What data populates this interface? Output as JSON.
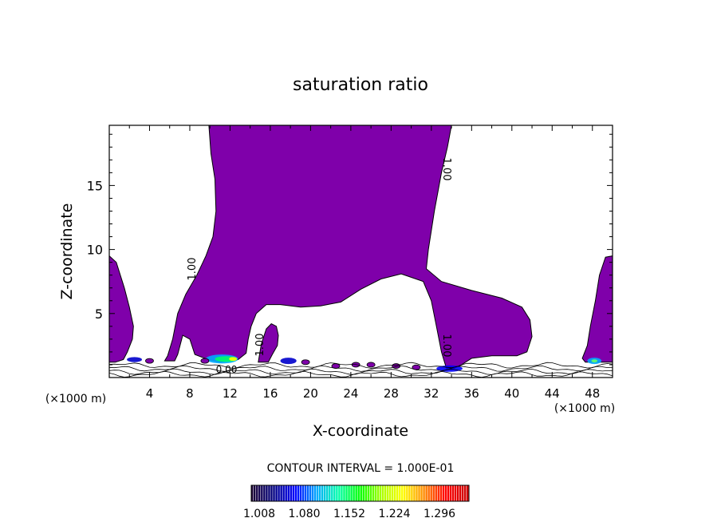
{
  "chart_data": {
    "type": "contour",
    "title": "saturation ratio",
    "xlabel": "X-coordinate",
    "ylabel": "Z-coordinate",
    "x_unit_left": "(×1000 m)",
    "x_unit_right": "(×1000 m)",
    "xlim": [
      0,
      50
    ],
    "ylim": [
      0,
      19.7
    ],
    "x_ticks": [
      4,
      8,
      12,
      16,
      20,
      24,
      28,
      32,
      36,
      40,
      44,
      48
    ],
    "y_ticks": [
      5,
      10,
      15
    ],
    "contour_labels": [
      "1.00",
      "1.00",
      "1.00",
      "1.00",
      "0.00"
    ],
    "contour_interval_text": "CONTOUR INTERVAL = 1.000E-01",
    "colorbar": {
      "ticks": [
        "1.008",
        "1.080",
        "1.152",
        "1.224",
        "1.296"
      ],
      "colors": [
        "#1a0033",
        "#000080",
        "#0000ff",
        "#00aaff",
        "#00ffaa",
        "#00ff00",
        "#aaff00",
        "#ffff00",
        "#ff8800",
        "#ff0000",
        "#cc0000"
      ]
    },
    "fill_color": "#7f00aa",
    "regions": [
      {
        "name": "upper-plume",
        "points": [
          [
            9.9,
            19.7
          ],
          [
            34,
            19.7
          ],
          [
            33.6,
            18
          ],
          [
            33,
            16
          ],
          [
            32.3,
            13
          ],
          [
            31.7,
            10
          ],
          [
            31.5,
            8.5
          ],
          [
            33,
            7.5
          ],
          [
            36,
            6.8
          ],
          [
            39,
            6.2
          ],
          [
            41,
            5.5
          ],
          [
            41.8,
            4.5
          ],
          [
            42,
            3.2
          ],
          [
            41.5,
            2
          ],
          [
            40.5,
            1.7
          ],
          [
            38,
            1.7
          ],
          [
            36,
            1.5
          ],
          [
            35,
            1
          ],
          [
            34,
            0.6
          ],
          [
            33.5,
            0.7
          ],
          [
            33,
            2
          ],
          [
            32.5,
            4
          ],
          [
            32,
            6
          ],
          [
            31.2,
            7.5
          ],
          [
            29,
            8.1
          ],
          [
            27,
            7.7
          ],
          [
            25,
            6.9
          ],
          [
            23,
            5.9
          ],
          [
            21,
            5.6
          ],
          [
            19,
            5.5
          ],
          [
            17,
            5.7
          ],
          [
            15.6,
            5.7
          ],
          [
            14.6,
            5
          ],
          [
            14.1,
            4
          ],
          [
            13.8,
            3
          ],
          [
            13.6,
            1.9
          ],
          [
            12.8,
            1.4
          ],
          [
            11,
            1.2
          ],
          [
            9.8,
            1.4
          ],
          [
            8.5,
            1.8
          ],
          [
            8,
            3
          ],
          [
            7.3,
            3.3
          ],
          [
            6.8,
            1.8
          ],
          [
            6.5,
            1.3
          ],
          [
            5.5,
            1.3
          ],
          [
            5.8,
            1.7
          ],
          [
            6.3,
            3
          ],
          [
            6.8,
            5
          ],
          [
            7.6,
            6.5
          ],
          [
            8.7,
            8
          ],
          [
            9.6,
            9.5
          ],
          [
            10.3,
            11
          ],
          [
            10.6,
            13
          ],
          [
            10.5,
            15.5
          ],
          [
            10.1,
            17.5
          ],
          [
            9.9,
            19.7
          ]
        ]
      },
      {
        "name": "left-edge",
        "points": [
          [
            0,
            9.5
          ],
          [
            0.7,
            9
          ],
          [
            1.5,
            7
          ],
          [
            2,
            5.5
          ],
          [
            2.4,
            4
          ],
          [
            2.3,
            3
          ],
          [
            1.8,
            2
          ],
          [
            1.4,
            1.4
          ],
          [
            0.6,
            1.2
          ],
          [
            0,
            1.2
          ]
        ]
      },
      {
        "name": "right-edge",
        "points": [
          [
            50,
            9.5
          ],
          [
            49.3,
            9.4
          ],
          [
            48.7,
            8
          ],
          [
            48.3,
            6
          ],
          [
            47.8,
            4
          ],
          [
            47.5,
            2.5
          ],
          [
            47,
            1.5
          ],
          [
            47.3,
            1.2
          ],
          [
            50,
            1.2
          ]
        ]
      },
      {
        "name": "small-pillar",
        "points": [
          [
            14.8,
            1.2
          ],
          [
            15.1,
            2.6
          ],
          [
            15.6,
            3.8
          ],
          [
            16.1,
            4.2
          ],
          [
            16.6,
            4
          ],
          [
            16.8,
            3.3
          ],
          [
            16.7,
            2.5
          ],
          [
            16.2,
            1.8
          ],
          [
            15.8,
            1.2
          ]
        ]
      }
    ]
  }
}
